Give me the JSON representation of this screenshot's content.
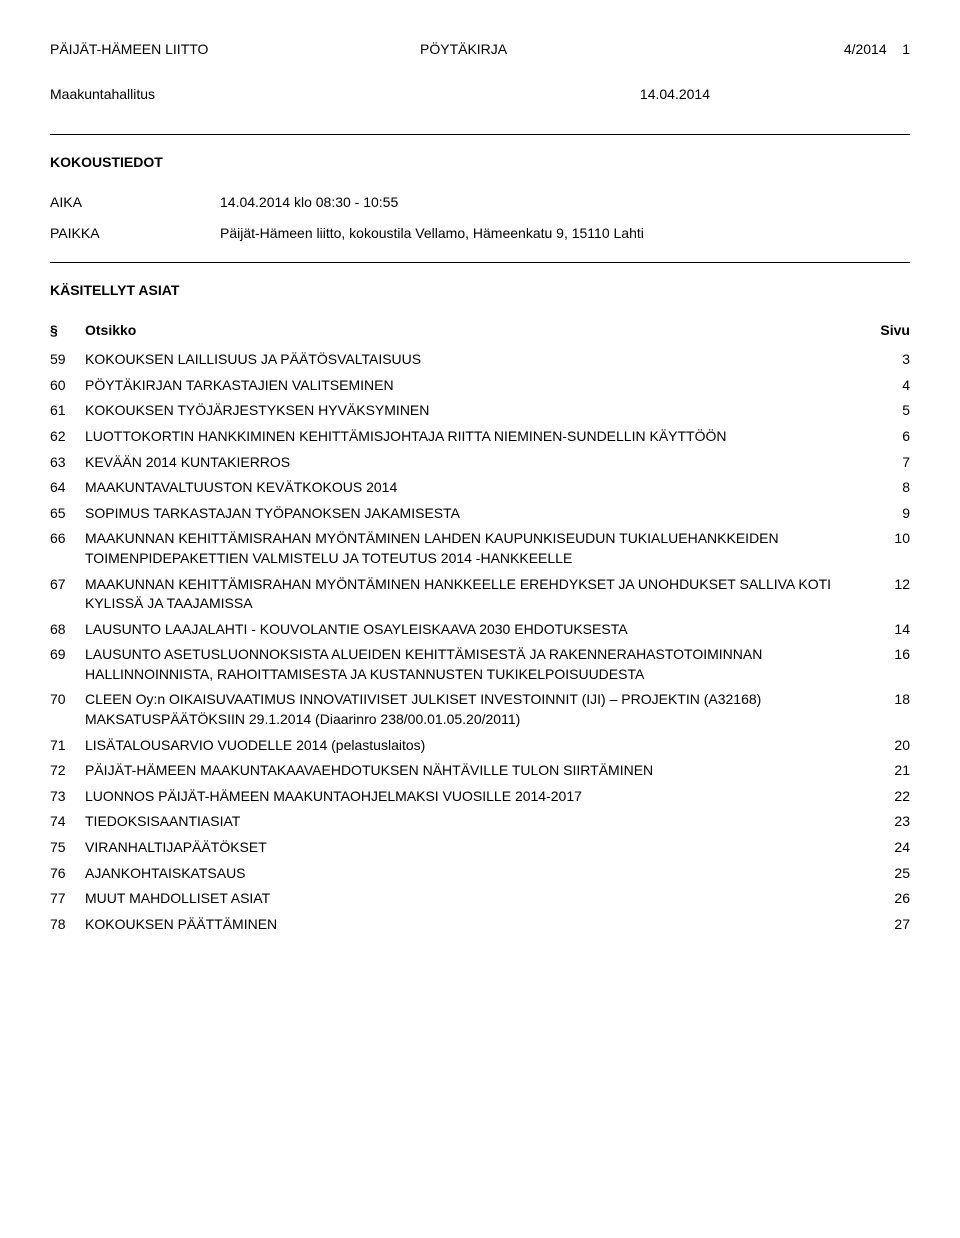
{
  "header": {
    "org": "PÄIJÄT-HÄMEEN LIITTO",
    "doctype": "PÖYTÄKIRJA",
    "docnum": "4/2014",
    "pagenum": "1"
  },
  "subheader": {
    "body": "Maakuntahallitus",
    "date": "14.04.2014"
  },
  "meeting": {
    "title": "KOKOUSTIEDOT",
    "time_label": "AIKA",
    "time_value": "14.04.2014 klo 08:30 - 10:55",
    "place_label": "PAIKKA",
    "place_value": "Päijät-Hämeen liitto, kokoustila Vellamo, Hämeenkatu 9, 15110 Lahti"
  },
  "agenda": {
    "title": "KÄSITELLYT ASIAT",
    "col_section": "§",
    "col_title": "Otsikko",
    "col_page": "Sivu",
    "items": [
      {
        "num": "59",
        "title": "KOKOUKSEN LAILLISUUS JA PÄÄTÖSVALTAISUUS",
        "page": "3"
      },
      {
        "num": "60",
        "title": "PÖYTÄKIRJAN TARKASTAJIEN VALITSEMINEN",
        "page": "4"
      },
      {
        "num": "61",
        "title": "KOKOUKSEN TYÖJÄRJESTYKSEN HYVÄKSYMINEN",
        "page": "5"
      },
      {
        "num": "62",
        "title": "LUOTTOKORTIN HANKKIMINEN KEHITTÄMISJOHTAJA RIITTA NIEMINEN-SUNDELLIN KÄYTTÖÖN",
        "page": "6"
      },
      {
        "num": "63",
        "title": "KEVÄÄN 2014 KUNTAKIERROS",
        "page": "7"
      },
      {
        "num": "64",
        "title": "MAAKUNTAVALTUUSTON KEVÄTKOKOUS 2014",
        "page": "8"
      },
      {
        "num": "65",
        "title": "SOPIMUS TARKASTAJAN TYÖPANOKSEN JAKAMISESTA",
        "page": "9"
      },
      {
        "num": "66",
        "title": "MAAKUNNAN KEHITTÄMISRAHAN MYÖNTÄMINEN LAHDEN KAUPUNKISEUDUN TUKIALUEHANKKEIDEN TOIMENPIDEPAKETTIEN VALMISTELU JA TOTEUTUS 2014 -HANKKEELLE",
        "page": "10"
      },
      {
        "num": "67",
        "title": "MAAKUNNAN KEHITTÄMISRAHAN MYÖNTÄMINEN HANKKEELLE EREHDYKSET JA UNOHDUKSET SALLIVA KOTI KYLISSÄ JA TAAJAMISSA",
        "page": "12"
      },
      {
        "num": "68",
        "title": "LAUSUNTO LAAJALAHTI - KOUVOLANTIE OSAYLEISKAAVA 2030 EHDOTUKSESTA",
        "page": "14"
      },
      {
        "num": "69",
        "title": "LAUSUNTO ASETUSLUONNOKSISTA ALUEIDEN KEHITTÄMISESTÄ JA RAKENNERAHASTOTOIMINNAN HALLINNOINNISTA, RAHOITTAMISESTA JA KUSTANNUSTEN TUKIKELPOISUUDESTA",
        "page": "16"
      },
      {
        "num": "70",
        "title": "CLEEN Oy:n OIKAISUVAATIMUS INNOVATIIVISET JULKISET INVESTOINNIT (IJI) – PROJEKTIN (A32168) MAKSATUSPÄÄTÖKSIIN 29.1.2014 (Diaarinro 238/00.01.05.20/2011)",
        "page": "18"
      },
      {
        "num": "71",
        "title": "LISÄTALOUSARVIO VUODELLE 2014 (pelastuslaitos)",
        "page": "20"
      },
      {
        "num": "72",
        "title": "PÄIJÄT-HÄMEEN MAAKUNTAKAAVAEHDOTUKSEN NÄHTÄVILLE TULON SIIRTÄMINEN",
        "page": "21"
      },
      {
        "num": "73",
        "title": "LUONNOS PÄIJÄT-HÄMEEN MAAKUNTAOHJELMAKSI VUOSILLE 2014-2017",
        "page": "22"
      },
      {
        "num": "74",
        "title": "TIEDOKSISAANTIASIAT",
        "page": "23"
      },
      {
        "num": "75",
        "title": "VIRANHALTIJAPÄÄTÖKSET",
        "page": "24"
      },
      {
        "num": "76",
        "title": "AJANKOHTAISKATSAUS",
        "page": "25"
      },
      {
        "num": "77",
        "title": "MUUT MAHDOLLISET ASIAT",
        "page": "26"
      },
      {
        "num": "78",
        "title": "KOKOUKSEN PÄÄTTÄMINEN",
        "page": "27"
      }
    ]
  }
}
